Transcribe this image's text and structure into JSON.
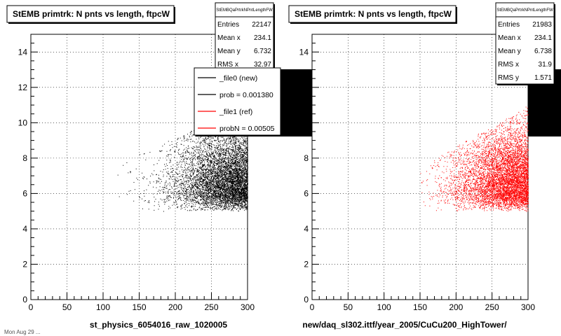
{
  "colors": {
    "ref_series": "#ff0000",
    "new_series": "#000000"
  },
  "footer_text": "Mon Aug 29 ...",
  "chart_data": [
    {
      "type": "scatter",
      "title": "StEMB primtrk: N pnts vs length, ftpcW",
      "xlabel": "st_physics_6054016_raw_1020005",
      "ylabel": "",
      "xlim": [
        0,
        300
      ],
      "ylim": [
        0,
        15
      ],
      "xticks": [
        "0",
        "50",
        "100",
        "150",
        "200",
        "250",
        "300"
      ],
      "yticks": [
        "0",
        "2",
        "4",
        "6",
        "8",
        "10",
        "12",
        "14"
      ],
      "stats": {
        "header": "StEMBQaPrtrkNPntLengthFW",
        "rows": [
          {
            "label": "Entries",
            "value": "22147"
          },
          {
            "label": "Mean x",
            "value": "234.1"
          },
          {
            "label": "Mean y",
            "value": "6.732"
          },
          {
            "label": "RMS x",
            "value": "32.97"
          }
        ]
      },
      "legend": [
        {
          "label": "_file0 (new)",
          "color": "#000000"
        },
        {
          "label": "prob = 0.001380",
          "color": "#000000"
        },
        {
          "label": "_file1 (ref)",
          "color": "#ff0000"
        },
        {
          "label": "probN = 0.005050",
          "color": "#ff0000"
        }
      ],
      "series": [
        {
          "color": "#000000",
          "entries": 22147,
          "mean_x": 234.1,
          "mean_y": 6.732,
          "rms_x": 32.97,
          "x_range": [
            110,
            300
          ],
          "y_range": [
            5,
            11
          ]
        }
      ]
    },
    {
      "type": "scatter",
      "title": "StEMB primtrk: N pnts vs length, ftpcW",
      "xlabel": "new/daq_sl302.ittf/year_2005/CuCu200_HighTower/",
      "ylabel": "",
      "xlim": [
        0,
        300
      ],
      "ylim": [
        0,
        15
      ],
      "xticks": [
        "0",
        "50",
        "100",
        "150",
        "200",
        "250",
        "300"
      ],
      "yticks": [
        "0",
        "2",
        "4",
        "6",
        "8",
        "10",
        "12",
        "14"
      ],
      "stats": {
        "header": "StEMBQaPrtrkNPntLengthFW",
        "rows": [
          {
            "label": "Entries",
            "value": "21983"
          },
          {
            "label": "Mean x",
            "value": "234.1"
          },
          {
            "label": "Mean y",
            "value": "6.738"
          },
          {
            "label": "RMS x",
            "value": "31.9"
          },
          {
            "label": "RMS y",
            "value": "1.571"
          }
        ]
      },
      "legend": [],
      "series": [
        {
          "color": "#ff0000",
          "entries": 21983,
          "mean_x": 234.1,
          "mean_y": 6.738,
          "rms_x": 31.9,
          "rms_y": 1.571,
          "x_range": [
            150,
            300
          ],
          "y_range": [
            5,
            11
          ]
        }
      ]
    }
  ]
}
